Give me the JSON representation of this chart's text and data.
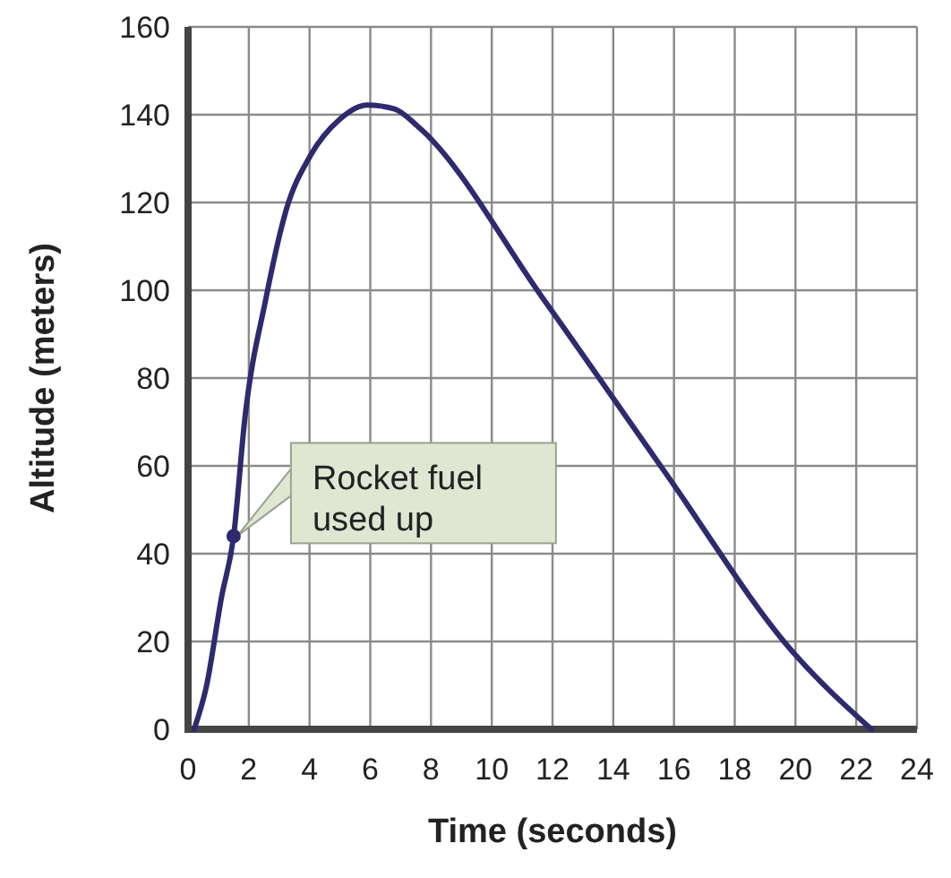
{
  "chart_data": {
    "type": "line",
    "xlabel": "Time (seconds)",
    "ylabel": "Altitude (meters)",
    "x": [
      0.2,
      0.6,
      1.1,
      1.5,
      1.87,
      2.56,
      3.24,
      4.03,
      5.0,
      5.9,
      6.8,
      7.57,
      11.7,
      15.7,
      19.9,
      22.5
    ],
    "series": [
      {
        "color": "#2e2a6e",
        "values": [
          0,
          9.6,
          30,
          44,
          70.8,
          98,
          118.5,
          130.7,
          139,
          142.2,
          141.3,
          137.3,
          98,
          58.6,
          17.7,
          0
        ]
      }
    ],
    "xlim": [
      0,
      24
    ],
    "xticks": [
      0,
      2,
      4,
      6,
      8,
      10,
      12,
      14,
      16,
      18,
      20,
      22,
      24
    ],
    "ylim": [
      0,
      160
    ],
    "yticks": [
      0,
      20,
      40,
      60,
      80,
      100,
      120,
      140,
      160
    ],
    "grid": true,
    "marker": "none",
    "line_style": "solid",
    "annotations": [
      {
        "text": "Rocket fuel used up",
        "x": 1.5,
        "y": 44
      }
    ]
  }
}
